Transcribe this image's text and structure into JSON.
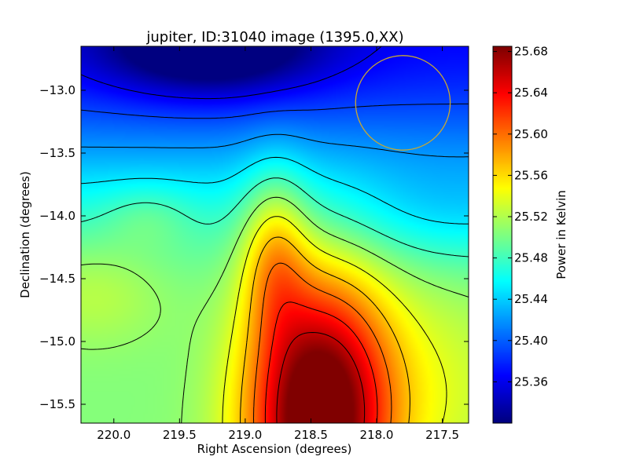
{
  "chart_data": {
    "type": "heatmap",
    "title": "jupiter, ID:31040 image (1395.0,XX)",
    "xlabel": "Right Ascension (degrees)",
    "ylabel": "Declination (degrees)",
    "xlim": [
      220.25,
      217.3
    ],
    "ylim": [
      -15.65,
      -12.65
    ],
    "x_ticks": [
      220.0,
      219.5,
      219.0,
      218.5,
      218.0,
      217.5
    ],
    "x_tick_labels": [
      "220.0",
      "219.5",
      "219.0",
      "218.5",
      "218.0",
      "217.5"
    ],
    "y_ticks": [
      -13.0,
      -13.5,
      -14.0,
      -14.5,
      -15.0,
      -15.5
    ],
    "y_tick_labels": [
      "−13.0",
      "−13.5",
      "−14.0",
      "−14.5",
      "−15.0",
      "−15.5"
    ],
    "colorbar": {
      "label": "Power in Kelvin",
      "range": [
        25.32,
        25.685
      ],
      "ticks": [
        25.36,
        25.4,
        25.44,
        25.48,
        25.52,
        25.56,
        25.6,
        25.64,
        25.68
      ],
      "tick_labels": [
        "25.36",
        "25.40",
        "25.44",
        "25.48",
        "25.52",
        "25.56",
        "25.60",
        "25.64",
        "25.68"
      ],
      "colormap": "jet"
    },
    "field_features": [
      {
        "kind": "maximum",
        "ra": 218.45,
        "dec": -15.6,
        "value": 25.68
      },
      {
        "kind": "ridge",
        "ra": 218.75,
        "dec": -14.3,
        "value": 25.62
      },
      {
        "kind": "minimum",
        "ra": 219.0,
        "dec": -12.65,
        "value": 25.32
      },
      {
        "kind": "plateau",
        "ra": 220.0,
        "dec": -14.55,
        "value": 25.48
      }
    ],
    "contour_levels": [
      25.36,
      25.39,
      25.42,
      25.45,
      25.48,
      25.51,
      25.54,
      25.57,
      25.6,
      25.63,
      25.66
    ],
    "contour_color": "#000000",
    "circle": {
      "center_ra": 217.8,
      "center_dec": -13.1,
      "radius_deg": 0.36,
      "color": "#c8a832"
    }
  }
}
